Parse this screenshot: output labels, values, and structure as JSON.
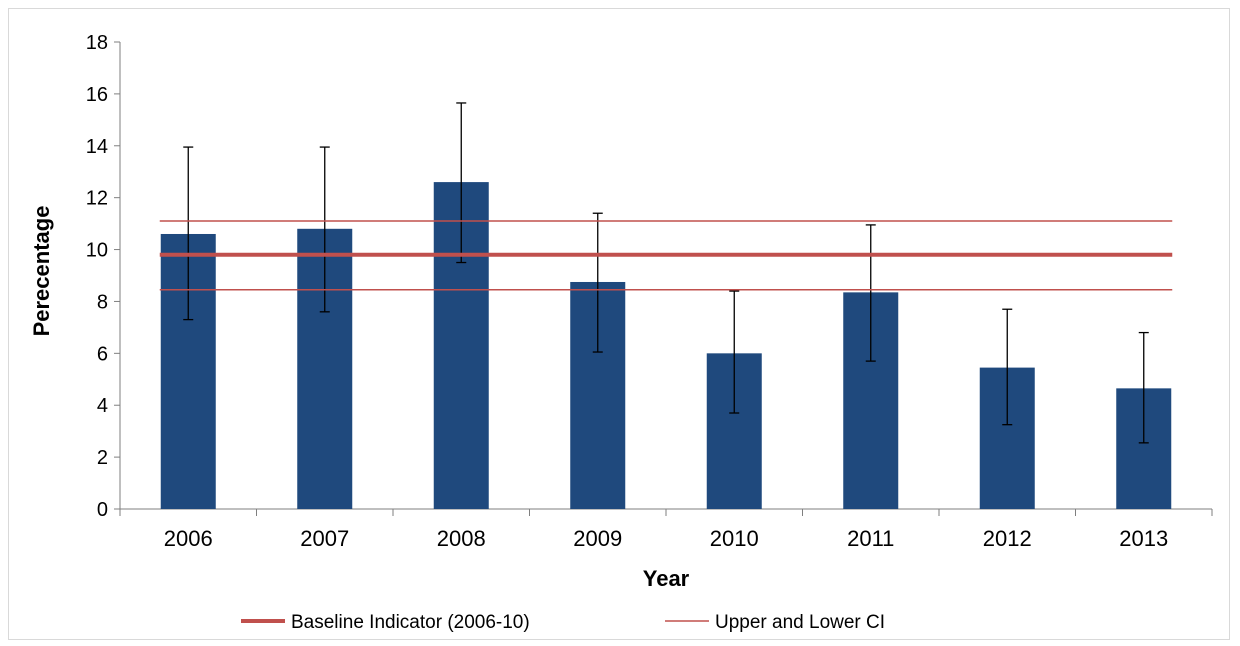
{
  "chart_data": {
    "type": "bar",
    "title": "",
    "xlabel": "Year",
    "ylabel": "Perecentage",
    "ylim": [
      0,
      18
    ],
    "ytick_step": 2,
    "yticks": [
      "0",
      "2",
      "4",
      "6",
      "8",
      "10",
      "12",
      "14",
      "16",
      "18"
    ],
    "grid": false,
    "categories": [
      "2006",
      "2007",
      "2008",
      "2009",
      "2010",
      "2011",
      "2012",
      "2013"
    ],
    "values": [
      10.6,
      10.8,
      12.6,
      8.75,
      6.0,
      8.35,
      5.45,
      4.65
    ],
    "error_bars": {
      "lower": [
        7.3,
        7.6,
        9.5,
        6.05,
        3.7,
        5.7,
        3.25,
        2.55
      ],
      "upper": [
        13.95,
        13.95,
        15.65,
        11.4,
        8.4,
        10.95,
        7.7,
        6.8
      ]
    },
    "reference_lines": [
      {
        "name": "Baseline Indicator (2006-10)",
        "value": 9.8,
        "style": "thick"
      },
      {
        "name": "Upper and Lower CI",
        "values": [
          11.1,
          8.45
        ],
        "style": "thin"
      }
    ],
    "legend": {
      "placement": "bottom",
      "entries": [
        "Baseline Indicator (2006-10)",
        "Upper and Lower CI"
      ]
    },
    "colors": {
      "bar": "#1f497d",
      "baseline": "#c0504d",
      "ci": "#c0504d",
      "axis": "#7f7f7f",
      "error_bar": "#000000"
    }
  }
}
